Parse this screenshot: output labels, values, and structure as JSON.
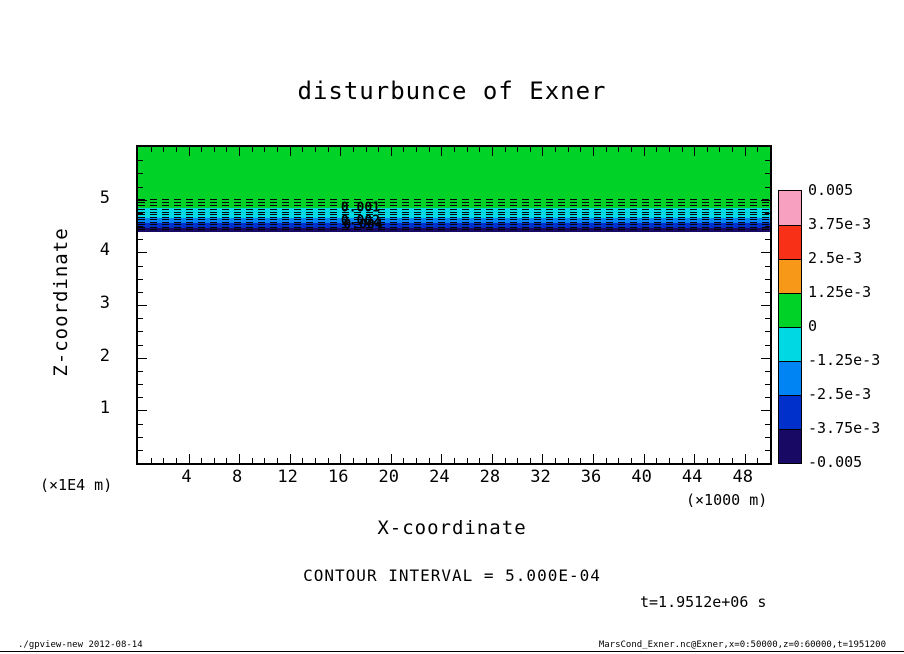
{
  "title": "disturbunce of Exner",
  "axes": {
    "x_title": "X-coordinate",
    "x_unit": "(×1000 m)",
    "x_major_ticks": [
      4,
      8,
      12,
      16,
      20,
      24,
      28,
      32,
      36,
      40,
      44,
      48
    ],
    "y_title": "Z-coordinate",
    "y_unit": "(×1E4 m)",
    "y_major_ticks": [
      1,
      2,
      3,
      4,
      5
    ]
  },
  "colorbar": {
    "tick_labels": [
      "0.005",
      "3.75e-3",
      "2.5e-3",
      "1.25e-3",
      "0",
      "-1.25e-3",
      "-2.5e-3",
      "-3.75e-3",
      "-0.005"
    ],
    "segment_colors_top_to_bottom": [
      "#f8a0c0",
      "#f83018",
      "#f89818",
      "#00d228",
      "#00d8e4",
      "#0084f4",
      "#0030cc",
      "#180a64"
    ]
  },
  "annotations": {
    "contour_interval": "CONTOUR INTERVAL = 5.000E-04",
    "time_label": "t=1.9512e+06 s",
    "footer_left": "./gpview-new  2012-08-14",
    "footer_right": "MarsCond_Exner.nc@Exner,x=0:50000,z=0:60000,t=1951200"
  },
  "contour_labels": [
    {
      "text": "0.001",
      "x": 17.6,
      "z": 4.85
    },
    {
      "text": "0.002",
      "x": 17.6,
      "z": 4.6
    },
    {
      "text": "0.004",
      "x": 17.8,
      "z": 4.52
    }
  ],
  "chart_data": {
    "type": "heatmap",
    "title": "disturbunce of Exner",
    "xlabel": "X-coordinate (×1000 m)",
    "ylabel": "Z-coordinate (×1E4 m)",
    "x_range": [
      0,
      50
    ],
    "z_range": [
      0,
      6
    ],
    "grid": false,
    "legend_position": "right-colorbar",
    "contour_interval": 0.0005,
    "tone_levels": [
      -0.005,
      -0.00375,
      -0.0025,
      -0.00125,
      0,
      0.00125,
      0.0025,
      0.00375,
      0.005
    ],
    "bands": [
      {
        "z_top": 6.0,
        "z_bottom": 4.85,
        "color": "#00d228",
        "value_range": [
          0,
          0.00125
        ]
      },
      {
        "z_top": 4.85,
        "z_bottom": 4.66,
        "color": "#00d8e4",
        "value_range": [
          -0.00125,
          0
        ]
      },
      {
        "z_top": 4.66,
        "z_bottom": 4.55,
        "color": "#0084f4",
        "value_range": [
          -0.0025,
          -0.00125
        ]
      },
      {
        "z_top": 4.55,
        "z_bottom": 4.47,
        "color": "#0030cc",
        "value_range": [
          -0.00375,
          -0.0025
        ]
      },
      {
        "z_top": 4.47,
        "z_bottom": 4.39,
        "color": "#180a64",
        "value_range": [
          -0.005,
          -0.00375
        ]
      }
    ],
    "contour_lines_z": [
      5.02,
      4.955,
      4.89,
      4.83,
      4.775,
      4.72,
      4.67,
      4.625,
      4.58,
      4.535,
      4.49,
      4.445
    ],
    "background_below_band": "#ffffff"
  }
}
